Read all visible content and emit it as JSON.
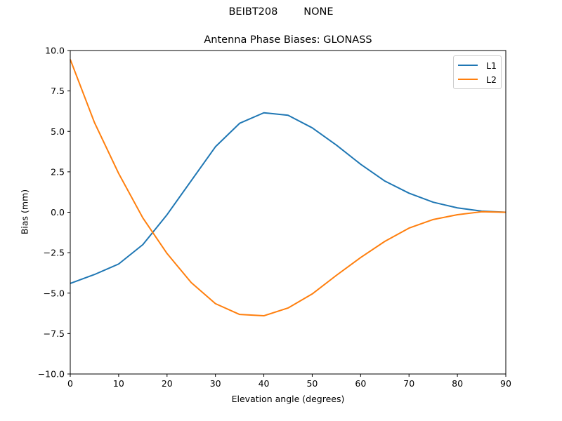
{
  "figure": {
    "suptitle": "BEIBT208        NONE",
    "title": "Antenna Phase Biases: GLONASS",
    "xlabel": "Elevation angle (degrees)",
    "ylabel": "Bias (mm)"
  },
  "legend": {
    "items": [
      {
        "label": "L1",
        "color": "#1f77b4"
      },
      {
        "label": "L2",
        "color": "#ff7f0e"
      }
    ]
  },
  "chart_data": {
    "type": "line",
    "title": "Antenna Phase Biases: GLONASS",
    "suptitle": "BEIBT208        NONE",
    "xlabel": "Elevation angle (degrees)",
    "ylabel": "Bias (mm)",
    "xlim": [
      0,
      90
    ],
    "ylim": [
      -10,
      10
    ],
    "xticks": [
      0,
      10,
      20,
      30,
      40,
      50,
      60,
      70,
      80,
      90
    ],
    "yticks": [
      -10.0,
      -7.5,
      -5.0,
      -2.5,
      0.0,
      2.5,
      5.0,
      7.5,
      10.0
    ],
    "ytick_labels": [
      "−10.0",
      "−7.5",
      "−5.0",
      "−2.5",
      "0.0",
      "2.5",
      "5.0",
      "7.5",
      "10.0"
    ],
    "grid": false,
    "legend_position": "upper right",
    "x": [
      0,
      5,
      10,
      15,
      20,
      25,
      30,
      35,
      40,
      45,
      50,
      55,
      60,
      65,
      70,
      75,
      80,
      85,
      90
    ],
    "series": [
      {
        "name": "L1",
        "color": "#1f77b4",
        "values": [
          -4.4,
          -3.85,
          -3.2,
          -2.0,
          -0.15,
          1.95,
          4.05,
          5.5,
          6.15,
          6.0,
          5.22,
          4.15,
          2.97,
          1.93,
          1.18,
          0.62,
          0.27,
          0.07,
          0.0
        ]
      },
      {
        "name": "L2",
        "color": "#ff7f0e",
        "values": [
          9.45,
          5.55,
          2.4,
          -0.35,
          -2.55,
          -4.35,
          -5.65,
          -6.32,
          -6.4,
          -5.92,
          -5.05,
          -3.9,
          -2.8,
          -1.8,
          -0.98,
          -0.45,
          -0.15,
          0.03,
          0.0
        ]
      }
    ]
  }
}
